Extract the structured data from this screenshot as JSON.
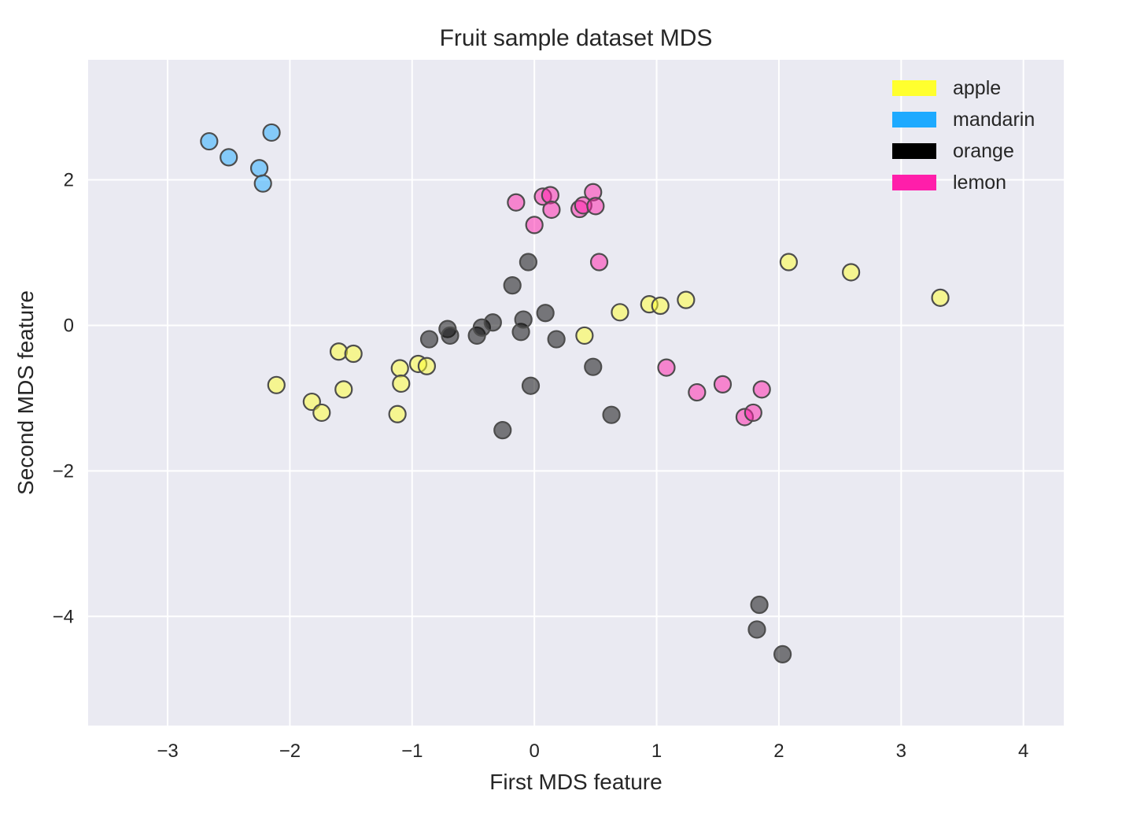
{
  "chart_data": {
    "type": "scatter",
    "title": "Fruit sample dataset MDS",
    "xlabel": "First MDS feature",
    "ylabel": "Second MDS feature",
    "xlim": [
      -3.65,
      4.33
    ],
    "ylim": [
      -5.5,
      3.65
    ],
    "xticks": [
      -3,
      -2,
      -1,
      0,
      1,
      2,
      3,
      4
    ],
    "yticks": [
      -4,
      -2,
      0,
      2
    ],
    "grid": true,
    "legend_position": "top-right",
    "background_color": "#eaeaf2",
    "marker_edge_color": "#4d4d4d",
    "series": [
      {
        "name": "apple",
        "color": "#ffff2e",
        "points": [
          [
            -2.11,
            -0.82
          ],
          [
            -1.82,
            -1.05
          ],
          [
            -1.74,
            -1.2
          ],
          [
            -1.6,
            -0.36
          ],
          [
            -1.56,
            -0.88
          ],
          [
            -1.48,
            -0.39
          ],
          [
            -1.12,
            -1.22
          ],
          [
            -1.1,
            -0.59
          ],
          [
            -1.09,
            -0.8
          ],
          [
            -0.95,
            -0.53
          ],
          [
            -0.88,
            -0.56
          ],
          [
            0.41,
            -0.14
          ],
          [
            0.7,
            0.18
          ],
          [
            0.94,
            0.29
          ],
          [
            1.03,
            0.27
          ],
          [
            1.24,
            0.35
          ],
          [
            2.08,
            0.87
          ],
          [
            2.59,
            0.73
          ],
          [
            3.32,
            0.38
          ]
        ]
      },
      {
        "name": "mandarin",
        "color": "#1eaaff",
        "points": [
          [
            -2.66,
            2.53
          ],
          [
            -2.5,
            2.31
          ],
          [
            -2.25,
            2.16
          ],
          [
            -2.22,
            1.95
          ],
          [
            -2.15,
            2.65
          ]
        ]
      },
      {
        "name": "orange",
        "color": "#000000",
        "points": [
          [
            -0.86,
            -0.19
          ],
          [
            -0.71,
            -0.05
          ],
          [
            -0.69,
            -0.14
          ],
          [
            -0.47,
            -0.14
          ],
          [
            -0.43,
            -0.03
          ],
          [
            -0.34,
            0.04
          ],
          [
            -0.26,
            -1.44
          ],
          [
            -0.18,
            0.55
          ],
          [
            -0.11,
            -0.09
          ],
          [
            -0.09,
            0.08
          ],
          [
            -0.05,
            0.87
          ],
          [
            -0.03,
            -0.83
          ],
          [
            0.09,
            0.17
          ],
          [
            0.18,
            -0.19
          ],
          [
            0.48,
            -0.57
          ],
          [
            0.63,
            -1.23
          ],
          [
            1.84,
            -3.84
          ],
          [
            1.82,
            -4.18
          ],
          [
            2.03,
            -4.52
          ]
        ]
      },
      {
        "name": "lemon",
        "color": "#ff1eaa",
        "points": [
          [
            -0.15,
            1.69
          ],
          [
            0.0,
            1.38
          ],
          [
            0.07,
            1.77
          ],
          [
            0.13,
            1.79
          ],
          [
            0.14,
            1.59
          ],
          [
            0.37,
            1.6
          ],
          [
            0.4,
            1.65
          ],
          [
            0.48,
            1.83
          ],
          [
            0.5,
            1.64
          ],
          [
            0.53,
            0.87
          ],
          [
            1.08,
            -0.58
          ],
          [
            1.33,
            -0.92
          ],
          [
            1.54,
            -0.81
          ],
          [
            1.72,
            -1.26
          ],
          [
            1.79,
            -1.2
          ],
          [
            1.86,
            -0.88
          ]
        ]
      }
    ]
  }
}
